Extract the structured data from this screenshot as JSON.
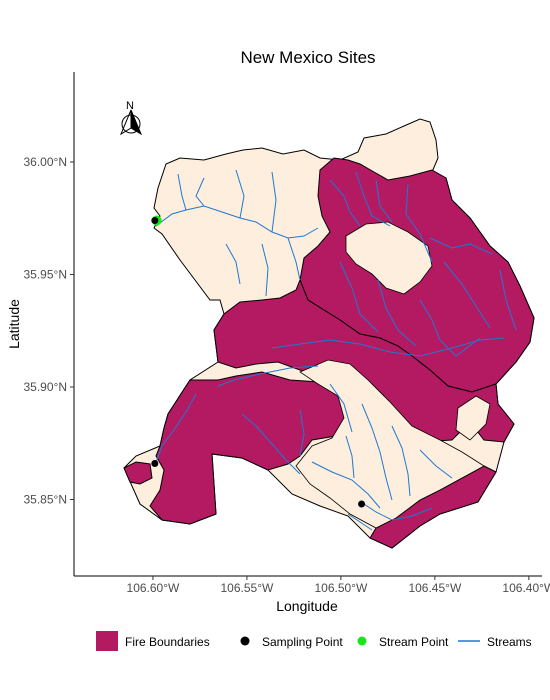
{
  "title": "New Mexico Sites",
  "xlabel": "Longitude",
  "ylabel": "Latitude",
  "compass_label": "N",
  "colors": {
    "fire": "#b41a62",
    "background_land": "#fdeedd",
    "stream": "#1f78d1",
    "sampling": "#000000",
    "stream_point": "#19e619"
  },
  "chart_data": {
    "type": "map",
    "title": "New Mexico Sites",
    "xlabel": "Longitude",
    "ylabel": "Latitude",
    "xlim": [
      -106.642,
      -106.393
    ],
    "ylim": [
      35.816,
      36.04
    ],
    "x_ticks": [
      {
        "value": -106.6,
        "label": "106.60°W"
      },
      {
        "value": -106.55,
        "label": "106.55°W"
      },
      {
        "value": -106.5,
        "label": "106.50°W"
      },
      {
        "value": -106.45,
        "label": "106.45°W"
      },
      {
        "value": -106.4,
        "label": "106.40°W"
      }
    ],
    "y_ticks": [
      {
        "value": 35.85,
        "label": "35.85°N"
      },
      {
        "value": 35.9,
        "label": "35.90°N"
      },
      {
        "value": 35.95,
        "label": "35.95°N"
      },
      {
        "value": 36.0,
        "label": "36.00°N"
      }
    ],
    "sampling_points": [
      {
        "lon": -106.599,
        "lat": 35.974
      },
      {
        "lon": -106.599,
        "lat": 35.866
      },
      {
        "lon": -106.489,
        "lat": 35.848
      }
    ],
    "stream_points": [
      {
        "lon": -106.598,
        "lat": 35.974
      }
    ],
    "legend": [
      {
        "label": "Fire Boundaries",
        "kind": "fill"
      },
      {
        "label": "Sampling Point",
        "kind": "black-dot"
      },
      {
        "label": "Stream Point",
        "kind": "green-dot"
      },
      {
        "label": "Streams",
        "kind": "line"
      }
    ],
    "legend_position": "bottom",
    "grid": false
  }
}
